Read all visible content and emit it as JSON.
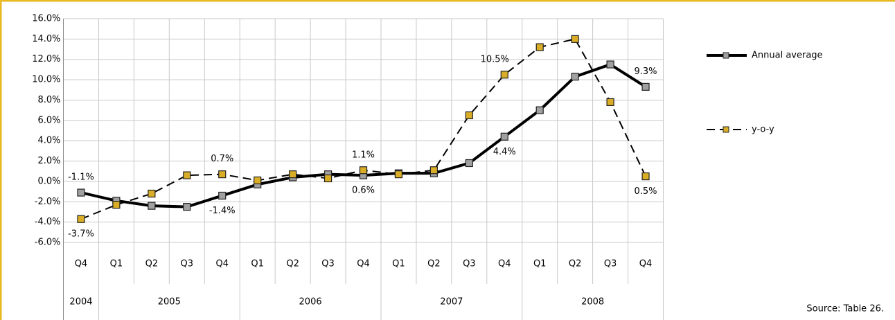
{
  "chart_data": {
    "type": "line",
    "categories": [
      "Q4",
      "Q1",
      "Q2",
      "Q3",
      "Q4",
      "Q1",
      "Q2",
      "Q3",
      "Q4",
      "Q1",
      "Q2",
      "Q3",
      "Q4",
      "Q1",
      "Q2",
      "Q3",
      "Q4"
    ],
    "years": [
      "2004",
      "2005",
      "2006",
      "2007",
      "2008"
    ],
    "year_spans": [
      1,
      4,
      4,
      4,
      4
    ],
    "series": [
      {
        "name": "Annual average",
        "color": "#000000",
        "marker_color": "#a0a0a0",
        "dashed": false,
        "values": [
          -1.1,
          -1.9,
          -2.4,
          -2.5,
          -1.4,
          -0.3,
          0.4,
          0.7,
          0.6,
          0.8,
          0.8,
          1.8,
          4.4,
          7.0,
          10.3,
          11.5,
          9.3
        ],
        "value_labels": [
          "-1.1%",
          null,
          null,
          null,
          "-1.4%",
          null,
          null,
          null,
          "0.6%",
          null,
          null,
          null,
          "4.4%",
          null,
          null,
          null,
          "9.3%"
        ]
      },
      {
        "name": "y-o-y",
        "color": "#000000",
        "marker_color": "#d9ad26",
        "dashed": true,
        "values": [
          -3.7,
          -2.3,
          -1.2,
          0.6,
          0.7,
          0.1,
          0.7,
          0.3,
          1.1,
          0.7,
          1.1,
          6.5,
          10.5,
          13.2,
          14.0,
          7.8,
          0.5
        ],
        "value_labels": [
          "-3.7%",
          null,
          null,
          null,
          "0.7%",
          null,
          null,
          null,
          "1.1%",
          null,
          null,
          null,
          "10.5%",
          null,
          null,
          null,
          "0.5%"
        ]
      }
    ],
    "ylim": [
      -6,
      16
    ],
    "yticks": [
      {
        "value": -6,
        "label": "-6.0%"
      },
      {
        "value": -4,
        "label": "-4.0%"
      },
      {
        "value": -2,
        "label": "-2.0%"
      },
      {
        "value": 0,
        "label": "0.0%"
      },
      {
        "value": 2,
        "label": "2.0%"
      },
      {
        "value": 4,
        "label": "4.0%"
      },
      {
        "value": 6,
        "label": "6.0%"
      },
      {
        "value": 8,
        "label": "8.0%"
      },
      {
        "value": 10,
        "label": "10.0%"
      },
      {
        "value": 12,
        "label": "12.0%"
      },
      {
        "value": 14,
        "label": "14.0%"
      },
      {
        "value": 16,
        "label": "16.0%"
      }
    ],
    "grid": true,
    "legend": "right",
    "source": "Source: Table 26."
  }
}
